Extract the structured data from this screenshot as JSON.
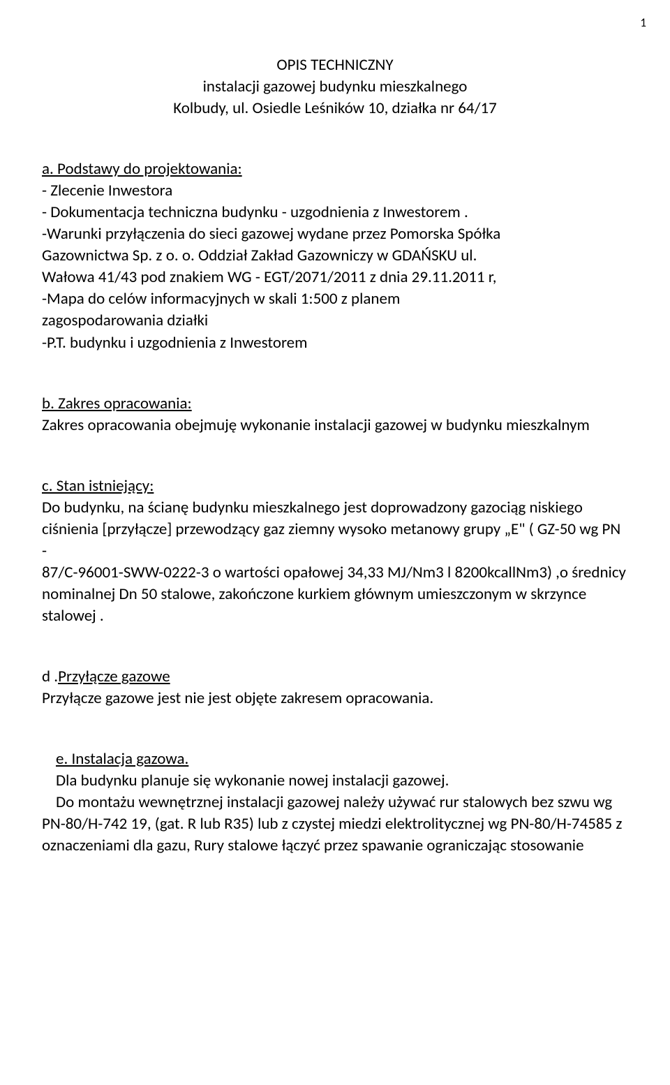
{
  "pageNumber": "1",
  "title": {
    "line1": "OPIS TECHNICZNY",
    "line2": "instalacji gazowej budynku mieszkalnego",
    "line3": "Kolbudy, ul. Osiedle Leśników 10, działka nr 64/17"
  },
  "sectionA": {
    "heading": "a. Podstawy do projektowania:",
    "l1": "- Zlecenie Inwestora",
    "l2": "- Dokumentacja techniczna budynku - uzgodnienia z Inwestorem .",
    "l3": "-Warunki przyłączenia do sieci gazowej wydane przez Pomorska Spółka",
    "l4": "Gazownictwa Sp. z o. o. Oddział Zakład Gazowniczy  w GDAŃSKU ul.",
    "l5": "Wałowa 41/43 pod znakiem WG - EGT/2071/2011 z dnia 29.11.2011 r,",
    "l6": "-Mapa do celów informacyjnych w skali 1:500 z planem",
    "l7": "zagospodarowania działki",
    "l8": "-P.T. budynku i uzgodnienia z Inwestorem"
  },
  "sectionB": {
    "heading": "b. Zakres opracowania:",
    "l1": "Zakres opracowania obejmuję wykonanie  instalacji gazowej  w budynku mieszkalnym"
  },
  "sectionC": {
    "heading": "c. Stan istniejący:",
    "l1": "Do budynku, na ścianę budynku mieszkalnego jest doprowadzony gazociąg niskiego",
    "l2": "ciśnienia [przyłącze] przewodzący gaz ziemny wysoko metanowy grupy „E\" ( GZ-50 wg PN -",
    "l3": "87/C-96001-SWW-0222-3 o  wartości opałowej 34,33 MJ/Nm3 l 8200kcallNm3) ,o średnicy",
    "l4": "nominalnej Dn 50 stalowe, zakończone kurkiem głównym  umieszczonym w skrzynce",
    "l5": "stalowej ."
  },
  "sectionD": {
    "prefix": "d .",
    "heading": "Przyłącze gazowe",
    "l1": "Przyłącze gazowe jest nie jest objęte zakresem opracowania."
  },
  "sectionE": {
    "heading": "e. Instalacja  gazowa.",
    "l1": "Dla budynku planuje się wykonanie nowej instalacji gazowej.",
    "l2": "Do montażu wewnętrznej instalacji gazowej należy używać rur stalowych bez szwu wg",
    "l3": "PN-80/H-742 19, (gat. R lub R35) lub z czystej miedzi elektrolitycznej wg PN-80/H-74585 z",
    "l4": "oznaczeniami dla gazu, Rury stalowe łączyć przez spawanie ograniczając stosowanie"
  }
}
